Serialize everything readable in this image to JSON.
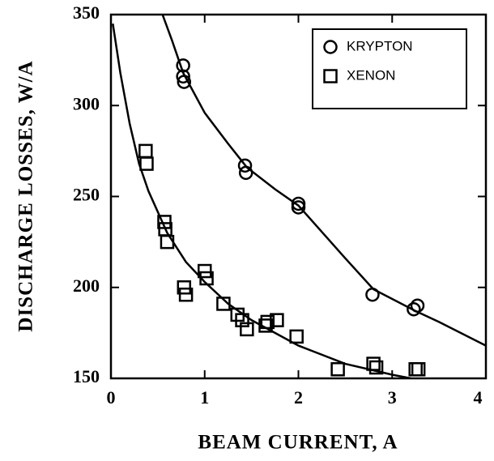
{
  "chart_data": {
    "type": "scatter",
    "xlabel": "BEAM CURRENT, A",
    "ylabel": "DISCHARGE LOSSES, W/A",
    "xlim": [
      0,
      4
    ],
    "xticks": [
      0,
      1,
      2,
      3,
      4
    ],
    "ylim": [
      150,
      350
    ],
    "yticks": [
      150,
      200,
      250,
      300,
      350
    ],
    "legend": "upper right",
    "series": [
      {
        "name": "KRYPTON",
        "marker": "circle",
        "color": "#000000",
        "x": [
          0.77,
          0.77,
          0.78,
          1.43,
          1.44,
          2.0,
          2.0,
          2.79,
          3.23,
          3.27
        ],
        "values": [
          322,
          316,
          313,
          267,
          263,
          246,
          244,
          196,
          188,
          190
        ]
      },
      {
        "name": "XENON",
        "marker": "square",
        "color": "#000000",
        "x": [
          0.37,
          0.38,
          0.57,
          0.58,
          0.6,
          0.78,
          0.8,
          1.0,
          1.02,
          1.2,
          1.35,
          1.4,
          1.45,
          1.65,
          1.67,
          1.77,
          1.98,
          2.42,
          2.8,
          2.83,
          3.25,
          3.28
        ],
        "values": [
          275,
          268,
          236,
          232,
          225,
          200,
          196,
          209,
          205,
          191,
          185,
          182,
          177,
          179,
          181,
          182,
          173,
          155,
          158,
          156,
          155,
          155
        ]
      }
    ],
    "fit_lines": [
      {
        "color": "#000000",
        "x": [
          0.55,
          0.65,
          0.77,
          1.0,
          1.25,
          1.45,
          1.75,
          2.0,
          2.5,
          2.8,
          3.25,
          3.5,
          4.0
        ],
        "values": [
          350,
          336,
          318,
          296,
          279,
          266,
          254,
          245,
          216,
          199,
          187,
          181,
          168
        ]
      },
      {
        "color": "#000000",
        "x": [
          0.02,
          0.1,
          0.2,
          0.3,
          0.4,
          0.6,
          0.8,
          1.0,
          1.25,
          1.5,
          2.0,
          2.5,
          3.0,
          3.2
        ],
        "values": [
          345,
          318,
          290,
          268,
          253,
          230,
          214,
          203,
          191,
          182,
          168,
          158,
          152,
          150
        ]
      }
    ]
  }
}
